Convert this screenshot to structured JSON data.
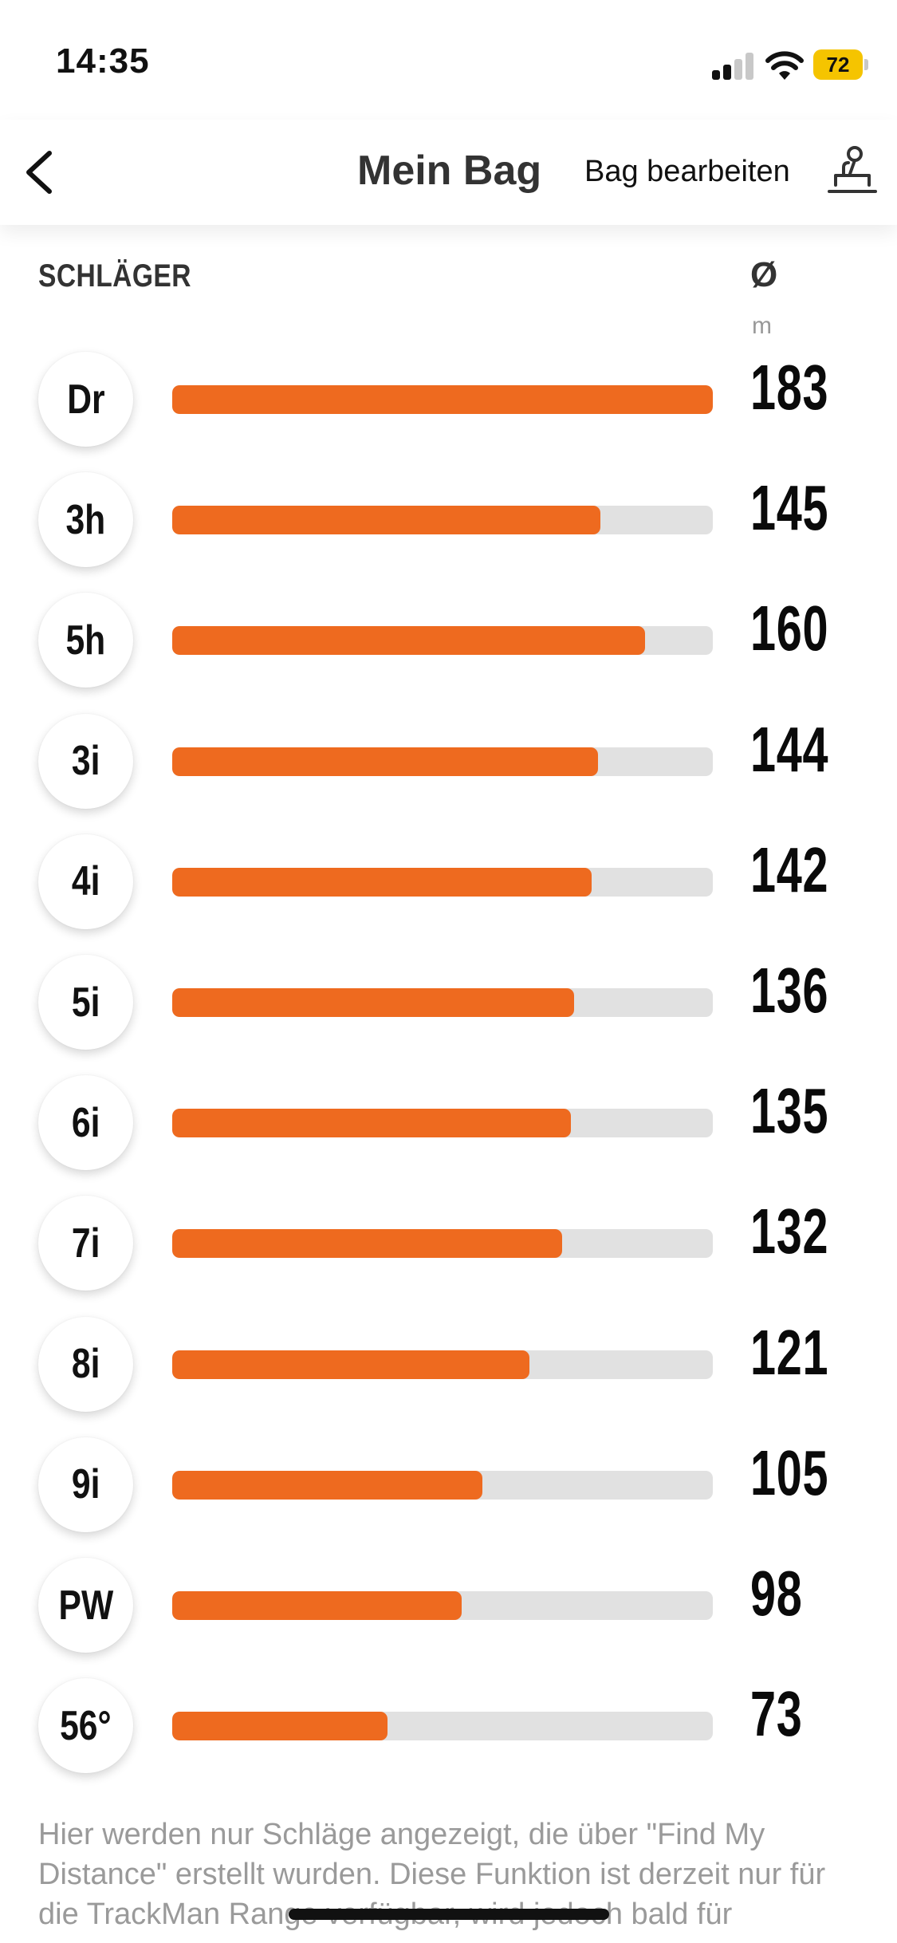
{
  "status_bar": {
    "time": "14:35",
    "battery": "72"
  },
  "nav": {
    "title": "Mein Bag",
    "edit_label": "Bag bearbeiten"
  },
  "table": {
    "clubs_header": "SCHLÄGER",
    "avg_header": "Ø",
    "unit": "m",
    "max_scale": 183,
    "rows": [
      {
        "club": "Dr",
        "distance": 183
      },
      {
        "club": "3h",
        "distance": 145
      },
      {
        "club": "5h",
        "distance": 160
      },
      {
        "club": "3i",
        "distance": 144
      },
      {
        "club": "4i",
        "distance": 142
      },
      {
        "club": "5i",
        "distance": 136
      },
      {
        "club": "6i",
        "distance": 135
      },
      {
        "club": "7i",
        "distance": 132
      },
      {
        "club": "8i",
        "distance": 121
      },
      {
        "club": "9i",
        "distance": 105
      },
      {
        "club": "PW",
        "distance": 98
      },
      {
        "club": "56°",
        "distance": 73
      }
    ]
  },
  "footnote": "Hier werden nur Schläge angezeigt, die über \"Find My Distance\" erstellt wurden. Diese Funktion ist derzeit nur für die TrackMan Range verfügbar, wird jedoch bald für",
  "colors": {
    "accent": "#ee6a1f",
    "track": "#e1e1e1",
    "battery": "#f5c400"
  },
  "icons": [
    "back-chevron-icon",
    "golfer-icon",
    "signal-icon",
    "wifi-icon",
    "battery-icon"
  ]
}
